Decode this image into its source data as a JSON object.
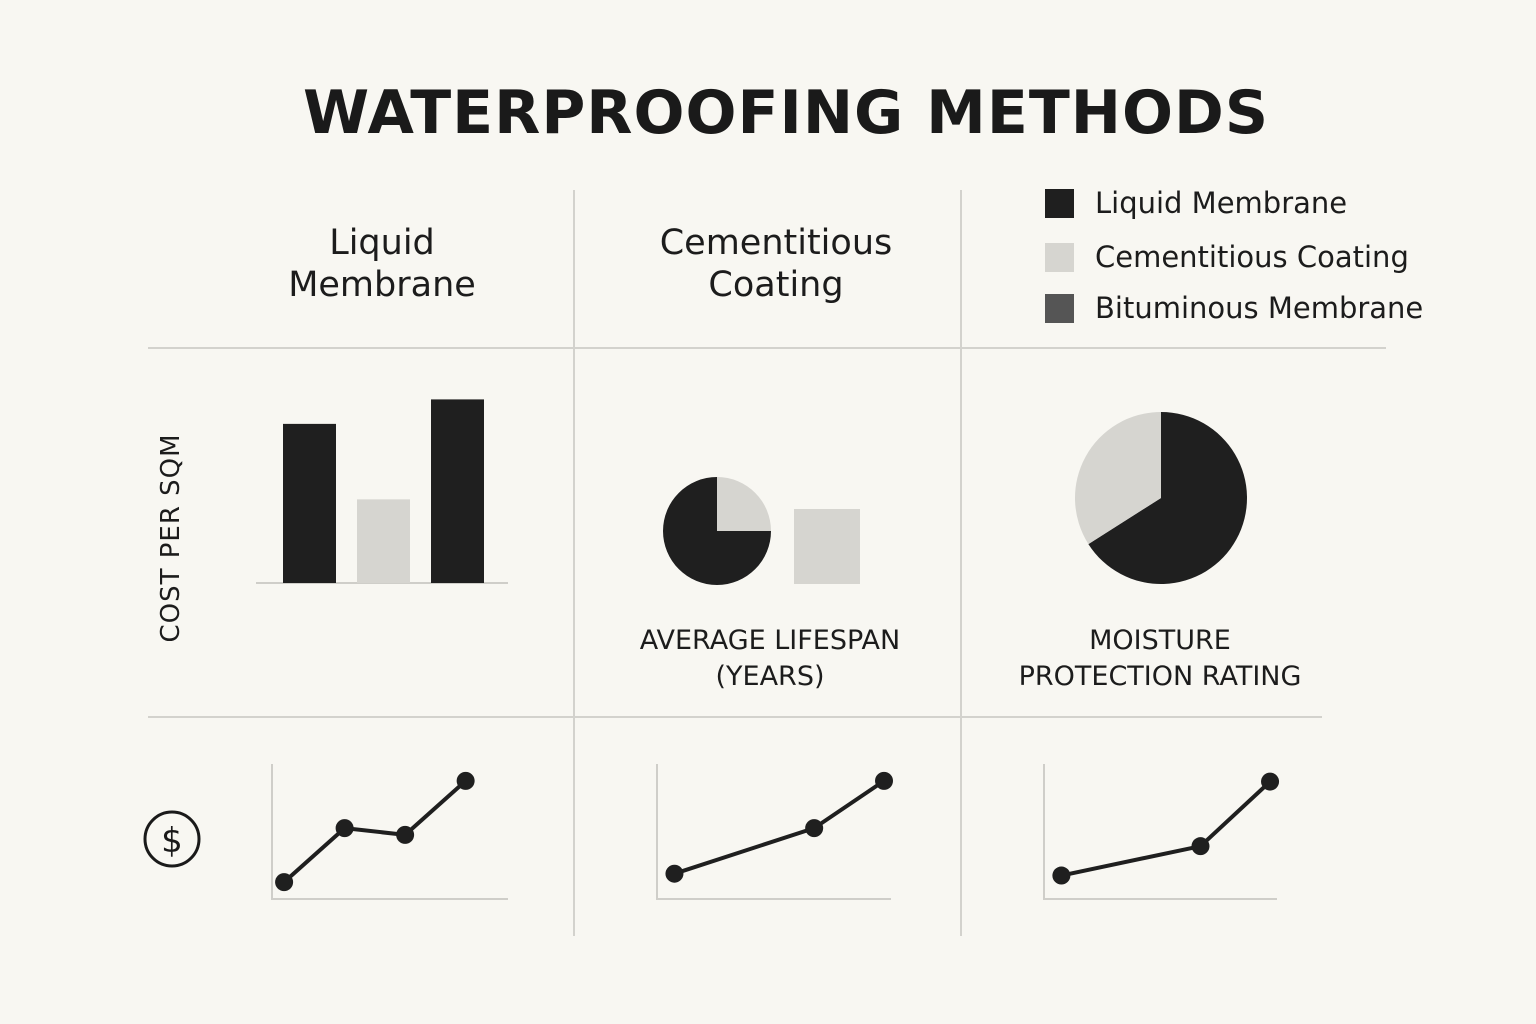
{
  "title": "WATERPROOFING METHODS",
  "columns": [
    {
      "line1": "Liquid",
      "line2": "Membrane"
    },
    {
      "line1": "Cementitious",
      "line2": "Coating"
    }
  ],
  "legend": [
    {
      "label": "Liquid Membrane",
      "color": "#1f1f1f"
    },
    {
      "label": "Cementitious Coating",
      "color": "#d6d5d0"
    },
    {
      "label": "Bituminous Membrane",
      "color": "#555555"
    }
  ],
  "row_label": "COST PER SQM",
  "lifespan_caption": {
    "line1": "AVERAGE LIFESPAN",
    "line2": "(YEARS)"
  },
  "moisture_caption": {
    "line1": "MOISTURE",
    "line2": "PROTECTION RATING"
  },
  "dollar_symbol": "$",
  "chart_data": [
    {
      "type": "bar",
      "name": "cost-per-sqm",
      "ylabel": "COST PER SQM",
      "categories": [
        "Liquid Membrane",
        "Cementitious Coating",
        "Bituminous Membrane"
      ],
      "values": [
        78,
        41,
        90
      ],
      "colors": [
        "#1f1f1f",
        "#d6d5d0",
        "#1f1f1f"
      ],
      "ylim": [
        0,
        100
      ]
    },
    {
      "type": "pie",
      "name": "average-lifespan",
      "slices": [
        {
          "label": "Liquid Membrane",
          "value": 75,
          "color": "#1f1f1f"
        },
        {
          "label": "Cementitious Coating",
          "value": 25,
          "color": "#d6d5d0"
        }
      ],
      "bar_values": [
        {
          "label": "Cementitious Coating",
          "value": 75,
          "color": "#d6d5d0"
        }
      ]
    },
    {
      "type": "pie",
      "name": "moisture-protection-rating",
      "slices": [
        {
          "label": "Liquid Membrane",
          "value": 66,
          "color": "#1f1f1f"
        },
        {
          "label": "Cementitious Coating",
          "value": 34,
          "color": "#d6d5d0"
        }
      ]
    },
    {
      "type": "line",
      "name": "trend-1",
      "x": [
        1,
        2,
        3,
        4
      ],
      "y": [
        1,
        4.2,
        3.8,
        7
      ],
      "xlim": [
        0.8,
        4.7
      ],
      "ylim": [
        0,
        8
      ]
    },
    {
      "type": "line",
      "name": "trend-2",
      "x": [
        1,
        3,
        4
      ],
      "y": [
        1.5,
        4.2,
        7
      ],
      "xlim": [
        0.75,
        4.1
      ],
      "ylim": [
        0,
        8
      ]
    },
    {
      "type": "line",
      "name": "trend-3",
      "x": [
        1,
        3,
        4
      ],
      "y": [
        1.6,
        3.6,
        8
      ],
      "xlim": [
        0.75,
        4.1
      ],
      "ylim": [
        0,
        9.2
      ]
    }
  ]
}
